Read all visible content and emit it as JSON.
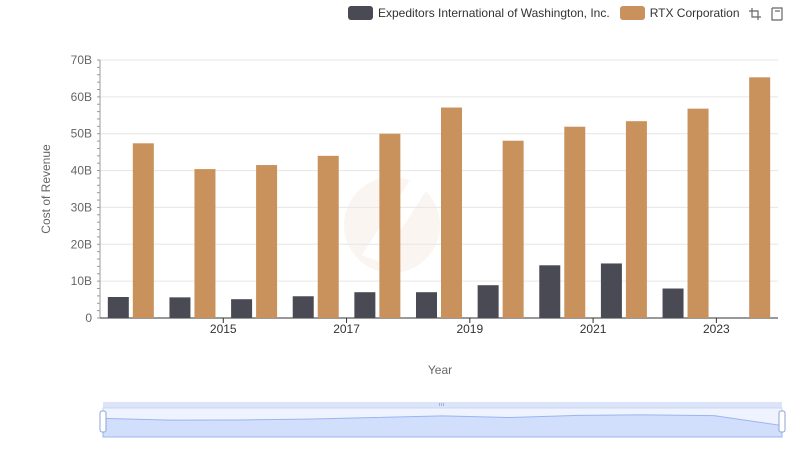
{
  "chart_data": {
    "type": "bar",
    "xlabel": "Year",
    "ylabel": "Cost of Revenue",
    "categories": [
      "2014",
      "2015",
      "2016",
      "2017",
      "2018",
      "2019",
      "2020",
      "2021",
      "2022",
      "2023",
      "2024"
    ],
    "x_tick_labels": [
      "2015",
      "2017",
      "2019",
      "2021",
      "2023"
    ],
    "y_tick_labels": [
      "0",
      "10B",
      "20B",
      "30B",
      "40B",
      "50B",
      "60B",
      "70B"
    ],
    "ylim": [
      0,
      70
    ],
    "y_unit": "B",
    "grid": true,
    "legend_position": "top-right",
    "series": [
      {
        "name": "Expeditors International of Washington, Inc.",
        "color": "#4a4a55",
        "values": [
          5.7,
          5.6,
          5.1,
          5.9,
          7.0,
          7.0,
          8.9,
          14.3,
          14.8,
          8.0,
          null
        ]
      },
      {
        "name": "RTX Corporation",
        "color": "#c9915c",
        "values": [
          47.4,
          40.4,
          41.5,
          44.0,
          50.0,
          57.1,
          48.1,
          51.9,
          53.4,
          56.8,
          65.3
        ]
      }
    ]
  },
  "toolbox": {
    "icons": [
      "zoom-icon",
      "restore-icon"
    ]
  },
  "datazoom": {
    "range_start": "2014",
    "range_end": "2024",
    "handle_color": "#8fb0f7"
  }
}
